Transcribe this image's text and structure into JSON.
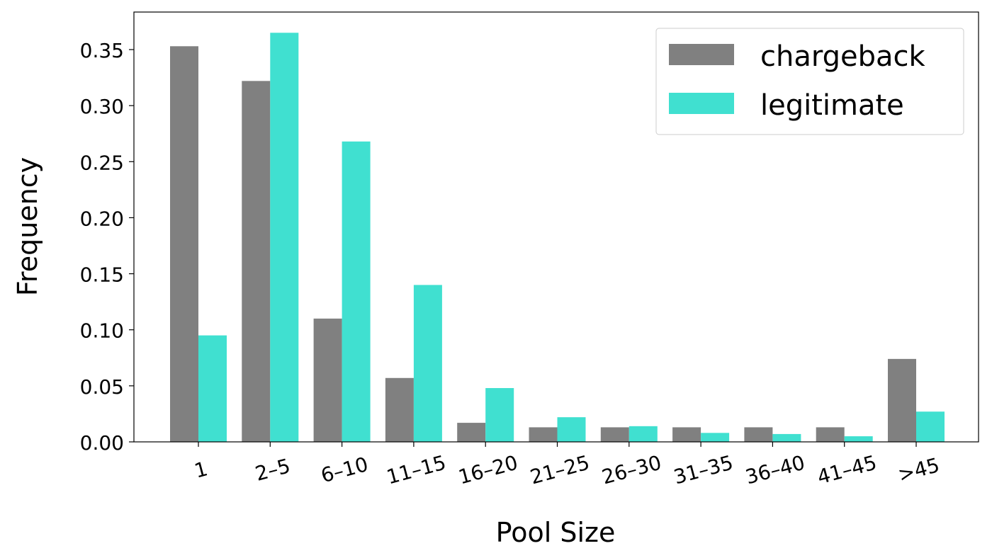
{
  "chart_data": {
    "type": "bar",
    "title": "",
    "xlabel": "Pool Size",
    "ylabel": "Frequency",
    "categories": [
      "1",
      "2–5",
      "6–10",
      "11–15",
      "16–20",
      "21–25",
      "26–30",
      "31–35",
      "36–40",
      "41–45",
      ">45"
    ],
    "series": [
      {
        "name": "chargeback",
        "color": "#808080",
        "values": [
          0.353,
          0.322,
          0.11,
          0.057,
          0.017,
          0.013,
          0.013,
          0.013,
          0.013,
          0.013,
          0.074
        ]
      },
      {
        "name": "legitimate",
        "color": "#40e0d0",
        "values": [
          0.095,
          0.365,
          0.268,
          0.14,
          0.048,
          0.022,
          0.014,
          0.008,
          0.007,
          0.005,
          0.027
        ]
      }
    ],
    "ylim": [
      0,
      0.3835
    ],
    "yticks": [
      "0.00",
      "0.05",
      "0.10",
      "0.15",
      "0.20",
      "0.25",
      "0.30",
      "0.35"
    ],
    "ytick_values": [
      0,
      0.05,
      0.1,
      0.15,
      0.2,
      0.25,
      0.3,
      0.35
    ],
    "grid": false,
    "legend_position": "top-right"
  }
}
